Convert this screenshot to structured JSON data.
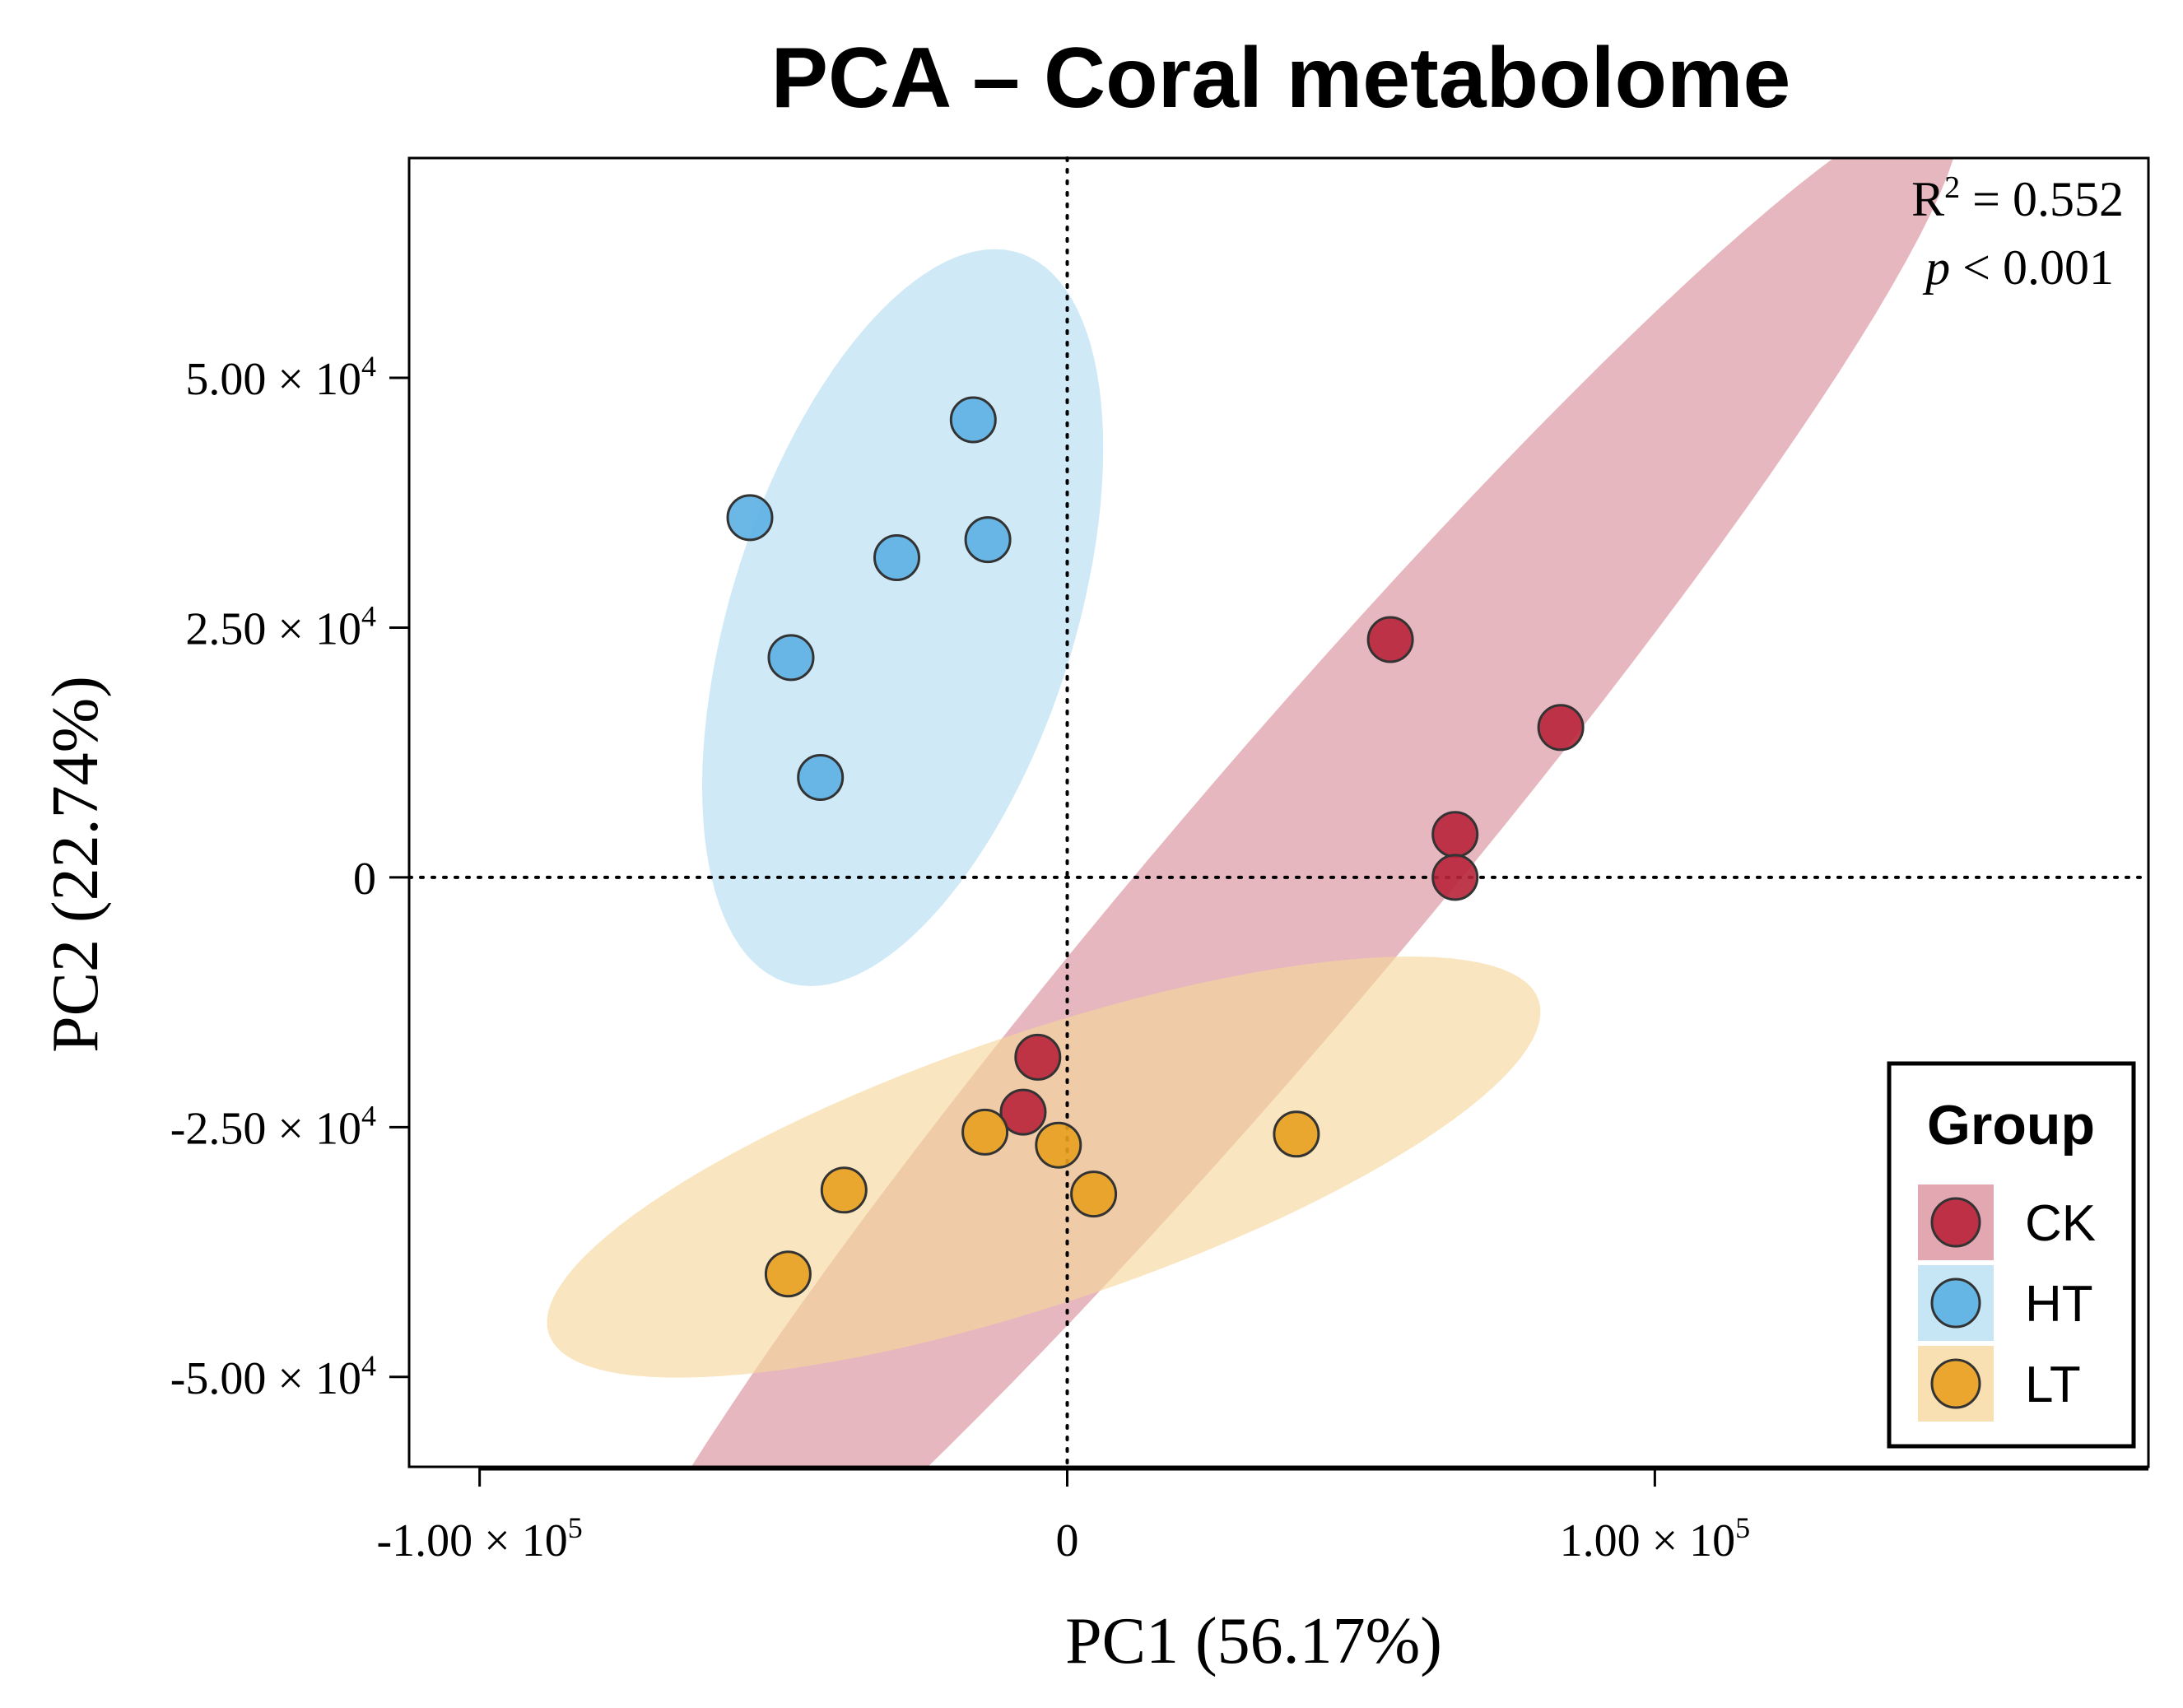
{
  "chart_data": {
    "type": "scatter",
    "title": "PCA – Coral metabolome",
    "xlabel": "PC1 (56.17%)",
    "ylabel": "PC2 (22.74%)",
    "xlim": [
      -112000,
      184000
    ],
    "ylim": [
      -59000,
      72000
    ],
    "x_ticks": [
      {
        "value": -100000,
        "label": "-1.00 × 10",
        "exp": "5"
      },
      {
        "value": 0,
        "label": "0",
        "exp": ""
      },
      {
        "value": 100000,
        "label": "1.00 × 10",
        "exp": "5"
      }
    ],
    "y_ticks": [
      {
        "value": 50000,
        "label": "5.00 × 10",
        "exp": "4"
      },
      {
        "value": 25000,
        "label": "2.50 × 10",
        "exp": "4"
      },
      {
        "value": 0,
        "label": "0",
        "exp": ""
      },
      {
        "value": -25000,
        "label": "-2.50 × 10",
        "exp": "4"
      },
      {
        "value": -50000,
        "label": "-5.00 × 10",
        "exp": "4"
      }
    ],
    "reference_lines": {
      "x": 0,
      "y": 0,
      "style": "dotted"
    },
    "annotation": {
      "r2_label": "R",
      "r2_sup": "2",
      "r2_value": " = 0.552",
      "p_italic": "p",
      "p_value": " < 0.001"
    },
    "legend": {
      "title": "Group",
      "position": "bottom-right"
    },
    "series": [
      {
        "name": "CK",
        "color": "#b8233a",
        "ellipse_color": "#d98a98",
        "points": [
          [
            55000,
            23800
          ],
          [
            84000,
            15000
          ],
          [
            66000,
            4300
          ],
          [
            66000,
            0
          ],
          [
            -5000,
            -18000
          ],
          [
            -7500,
            -23500
          ]
        ],
        "ellipse": {
          "cx": 35000,
          "cy": -3000,
          "rx": 141000,
          "ry": 16000,
          "angle_deg": 34.3
        }
      },
      {
        "name": "HT",
        "color": "#5bb0e3",
        "ellipse_color": "#b3dcf2",
        "points": [
          [
            -16000,
            45800
          ],
          [
            -54000,
            36000
          ],
          [
            -29000,
            32000
          ],
          [
            -13500,
            33800
          ],
          [
            -47000,
            22000
          ],
          [
            -42000,
            10000
          ]
        ],
        "ellipse": {
          "cx": -28000,
          "cy": 26000,
          "rx": 43000,
          "ry": 26000,
          "angle_deg": 49.8
        }
      },
      {
        "name": "LT",
        "color": "#e8a01f",
        "ellipse_color": "#f5d69a",
        "points": [
          [
            39000,
            -25700
          ],
          [
            -14000,
            -25500
          ],
          [
            -1500,
            -26800
          ],
          [
            4500,
            -31700
          ],
          [
            -38000,
            -31300
          ],
          [
            -47500,
            -39700
          ]
        ],
        "ellipse": {
          "cx": -4000,
          "cy": -29000,
          "rx": 86000,
          "ry": 14000,
          "angle_deg": 10.7
        }
      }
    ]
  }
}
